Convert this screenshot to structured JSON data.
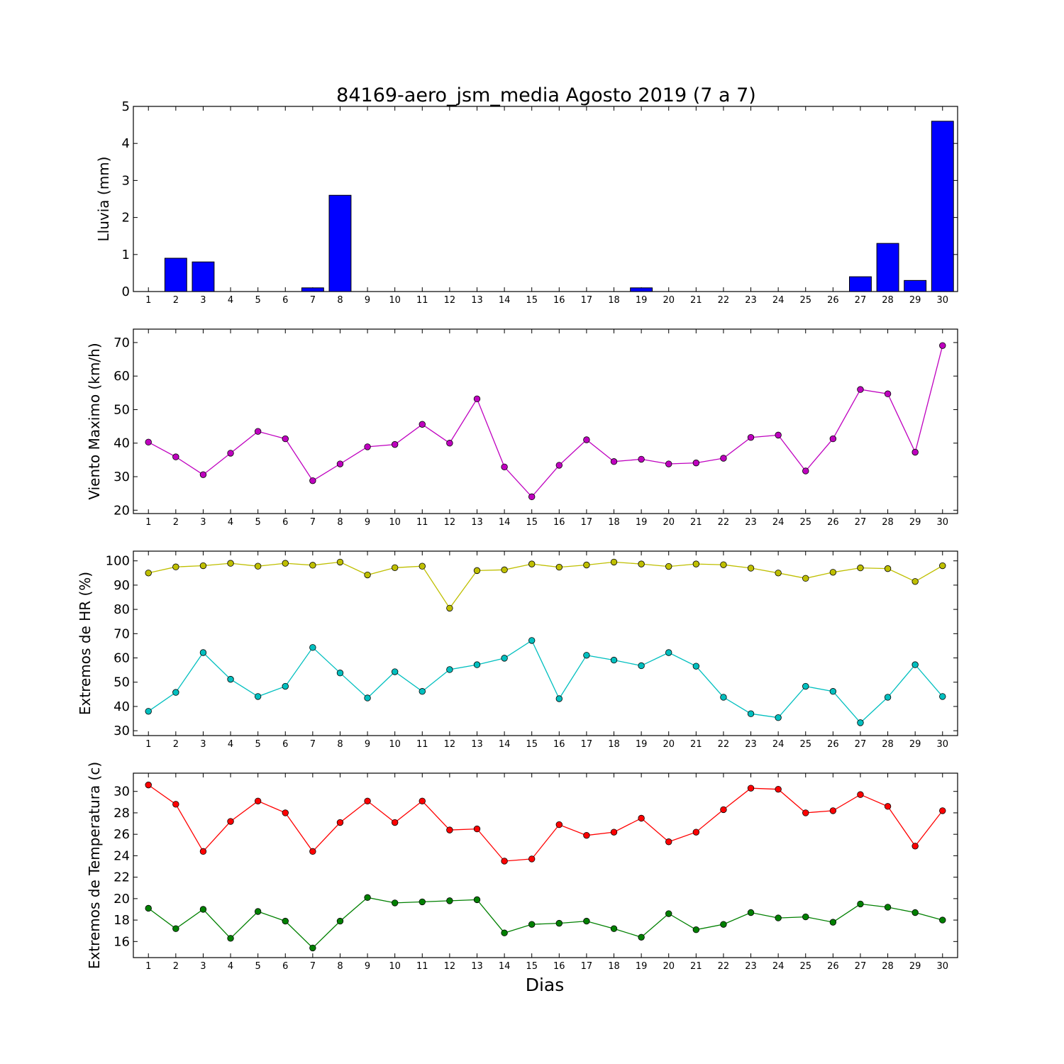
{
  "figure_title": "84169-aero_jsm_media Agosto 2019  (7 a 7)",
  "x_axis_label": "Dias",
  "chart_data": [
    {
      "type": "bar",
      "ylabel": "Lluvia (mm)",
      "x": [
        1,
        2,
        3,
        4,
        5,
        6,
        7,
        8,
        9,
        10,
        11,
        12,
        13,
        14,
        15,
        16,
        17,
        18,
        19,
        20,
        21,
        22,
        23,
        24,
        25,
        26,
        27,
        28,
        29,
        30
      ],
      "values": [
        0,
        0.9,
        0.8,
        0,
        0,
        0,
        0.1,
        2.6,
        0,
        0,
        0,
        0,
        0,
        0,
        0,
        0,
        0,
        0,
        0.1,
        0,
        0,
        0,
        0,
        0,
        0,
        0,
        0.4,
        1.3,
        0.3,
        4.6
      ],
      "ylim": [
        0,
        5
      ],
      "yticks": [
        0,
        1,
        2,
        3,
        4,
        5
      ],
      "color": "#0000ff"
    },
    {
      "type": "line",
      "ylabel": "Viento Maximo (km/h)",
      "x": [
        1,
        2,
        3,
        4,
        5,
        6,
        7,
        8,
        9,
        10,
        11,
        12,
        13,
        14,
        15,
        16,
        17,
        18,
        19,
        20,
        21,
        22,
        23,
        24,
        25,
        26,
        27,
        28,
        29,
        30
      ],
      "series": [
        {
          "color": "#bf00bf",
          "values": [
            40.3,
            35.9,
            30.6,
            37.0,
            43.5,
            41.3,
            28.8,
            33.8,
            38.9,
            39.6,
            45.6,
            40.0,
            53.2,
            32.9,
            24.0,
            33.4,
            41.0,
            34.5,
            35.2,
            33.8,
            34.1,
            35.5,
            41.7,
            42.4,
            31.7,
            41.3,
            56.0,
            54.7,
            37.3,
            69.1
          ]
        }
      ],
      "ylim": [
        19,
        74
      ],
      "yticks": [
        20,
        30,
        40,
        50,
        60,
        70
      ]
    },
    {
      "type": "line",
      "ylabel": "Extremos de HR (%)",
      "x": [
        1,
        2,
        3,
        4,
        5,
        6,
        7,
        8,
        9,
        10,
        11,
        12,
        13,
        14,
        15,
        16,
        17,
        18,
        19,
        20,
        21,
        22,
        23,
        24,
        25,
        26,
        27,
        28,
        29,
        30
      ],
      "series": [
        {
          "color": "#bfbf00",
          "values": [
            95,
            97.5,
            98,
            99,
            97.8,
            99,
            98.2,
            99.5,
            94.2,
            97.2,
            97.8,
            80.5,
            96,
            96.3,
            98.7,
            97.4,
            98.3,
            99.5,
            98.7,
            97.7,
            98.7,
            98.4,
            97,
            95,
            92.8,
            95.3,
            97.1,
            96.8,
            91.5,
            98
          ]
        },
        {
          "color": "#00bfbf",
          "values": [
            38,
            45.8,
            62.2,
            51.2,
            44.1,
            48.3,
            64.3,
            53.8,
            43.5,
            54.3,
            46.2,
            55.2,
            57.2,
            59.9,
            67.2,
            43.2,
            61.1,
            59.1,
            56.8,
            62.2,
            56.6,
            43.8,
            37,
            35.4,
            48.3,
            46.2,
            33.3,
            43.8,
            57.2,
            44.1
          ]
        }
      ],
      "ylim": [
        28,
        104
      ],
      "yticks": [
        30,
        40,
        50,
        60,
        70,
        80,
        90,
        100
      ]
    },
    {
      "type": "line",
      "ylabel": "Extremos de Temperatura (c)",
      "x": [
        1,
        2,
        3,
        4,
        5,
        6,
        7,
        8,
        9,
        10,
        11,
        12,
        13,
        14,
        15,
        16,
        17,
        18,
        19,
        20,
        21,
        22,
        23,
        24,
        25,
        26,
        27,
        28,
        29,
        30
      ],
      "series": [
        {
          "color": "#ff0000",
          "values": [
            30.6,
            28.8,
            24.4,
            27.2,
            29.1,
            28.0,
            24.4,
            27.1,
            29.1,
            27.1,
            29.1,
            26.4,
            26.5,
            23.5,
            23.7,
            26.9,
            25.9,
            26.2,
            27.5,
            25.3,
            26.2,
            28.3,
            30.3,
            30.2,
            28.0,
            28.2,
            29.7,
            28.6,
            24.9,
            28.2
          ]
        },
        {
          "color": "#008000",
          "values": [
            19.1,
            17.2,
            19.0,
            16.3,
            18.8,
            17.9,
            15.4,
            17.9,
            20.1,
            19.6,
            19.7,
            19.8,
            19.9,
            16.8,
            17.6,
            17.7,
            17.9,
            17.2,
            16.4,
            18.6,
            17.1,
            17.6,
            18.7,
            18.2,
            18.3,
            17.8,
            19.5,
            19.2,
            18.7,
            18.0
          ]
        }
      ],
      "ylim": [
        14.5,
        31.7
      ],
      "yticks": [
        16,
        18,
        20,
        22,
        24,
        26,
        28,
        30
      ]
    }
  ]
}
